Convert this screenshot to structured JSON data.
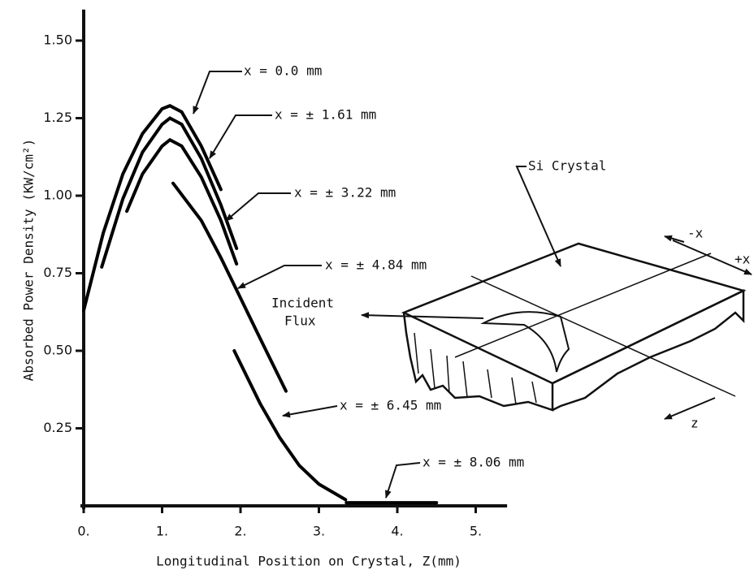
{
  "chart_data": {
    "type": "line",
    "xlabel": "Longitudinal Position on Crystal, Z(mm)",
    "ylabel": "Absorbed Power Density (KW/cm²)",
    "xlim": [
      0,
      5.4
    ],
    "ylim": [
      0,
      1.6
    ],
    "xticks": [
      {
        "value": 0,
        "label": "0."
      },
      {
        "value": 1,
        "label": "1."
      },
      {
        "value": 2,
        "label": "2."
      },
      {
        "value": 3,
        "label": "3."
      },
      {
        "value": 4,
        "label": "4."
      },
      {
        "value": 5,
        "label": "5."
      }
    ],
    "yticks": [
      0.25,
      {
        "value": 0.5,
        "label": "0.50"
      },
      0.75,
      {
        "value": 1,
        "label": "1.00"
      },
      1.25,
      {
        "value": 1.5,
        "label": "1.50"
      }
    ],
    "grid": false,
    "series": [
      {
        "name": "x = 0.0 mm",
        "color": "#000000",
        "x": [
          0,
          0.25,
          0.5,
          0.75,
          1.0,
          1.1,
          1.25,
          1.5,
          1.75
        ],
        "values": [
          0.63,
          0.88,
          1.07,
          1.2,
          1.28,
          1.29,
          1.27,
          1.16,
          1.02
        ]
      },
      {
        "name": "x = ± 1.61 mm",
        "color": "#000000",
        "x": [
          0.23,
          0.5,
          0.75,
          1.0,
          1.1,
          1.25,
          1.5,
          1.75,
          1.95
        ],
        "values": [
          0.77,
          0.99,
          1.14,
          1.23,
          1.25,
          1.23,
          1.12,
          0.97,
          0.83
        ]
      },
      {
        "name": "x = ± 3.22 mm",
        "color": "#000000",
        "x": [
          0.55,
          0.75,
          1.0,
          1.1,
          1.25,
          1.5,
          1.75,
          1.95
        ],
        "values": [
          0.95,
          1.07,
          1.16,
          1.18,
          1.16,
          1.06,
          0.92,
          0.78
        ]
      },
      {
        "name": "x = ± 4.84 mm",
        "color": "#000000",
        "x": [
          1.14,
          1.5,
          1.75,
          2.0,
          2.25,
          2.58
        ],
        "values": [
          1.04,
          0.92,
          0.8,
          0.67,
          0.54,
          0.37
        ]
      },
      {
        "name": "x = ± 6.45 mm",
        "color": "#000000",
        "x": [
          1.92,
          2.25,
          2.5,
          2.75,
          3.0,
          3.34
        ],
        "values": [
          0.5,
          0.33,
          0.22,
          0.13,
          0.07,
          0.02
        ]
      },
      {
        "name": "x = ± 8.06 mm",
        "color": "#000000",
        "x": [
          3.35,
          4.5
        ],
        "values": [
          0.01,
          0.01
        ]
      }
    ],
    "annotations": [
      "Si Crystal",
      "Incident",
      "Flux",
      "-x",
      "+x",
      "z"
    ]
  }
}
